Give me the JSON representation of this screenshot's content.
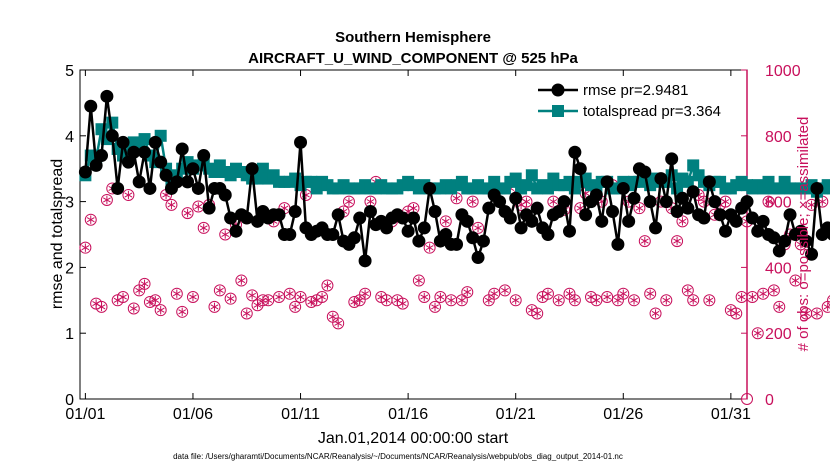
{
  "colors": {
    "rmse": "#000000",
    "spread": "#00807f",
    "obs": "#c8105c",
    "axis": "#000000",
    "grid": "#cccccc"
  },
  "chart_data": {
    "type": "line",
    "title": "Southern Hemisphere",
    "subtitle": "AIRCRAFT_U_WIND_COMPONENT @ 525 hPa",
    "xlabel": "Jan.01,2014 00:00:00 start",
    "ylabel": "rmse and totalspread",
    "y2label": "# of obs: o=possible; ×=assimilated",
    "footer": "data file: /Users/gharamti/Documents/NCAR/Reanalysis/~/Documents/NCAR/Reanalysis/webpub/obs_diag_output_2014-01.nc",
    "xlim": [
      0.75,
      31.75
    ],
    "ylim": [
      0,
      5
    ],
    "y2lim": [
      0,
      1000
    ],
    "xticks": [
      1,
      6,
      11,
      16,
      21,
      26,
      31
    ],
    "xtick_labels": [
      "01/01",
      "01/06",
      "01/11",
      "01/16",
      "01/21",
      "01/26",
      "01/31"
    ],
    "yticks": [
      0,
      1,
      2,
      3,
      4,
      5
    ],
    "ytick_labels": [
      "0",
      "1",
      "2",
      "3",
      "4",
      "5"
    ],
    "y2ticks": [
      0,
      200,
      400,
      600,
      800,
      1000
    ],
    "y2tick_labels": [
      "0",
      "200",
      "400",
      "600",
      "800",
      "1000"
    ],
    "legend_position": "top-right",
    "series": [
      {
        "name": "rmse pr=2.9481",
        "axis": "left",
        "marker": "circle",
        "x_start": 1.0,
        "x_step": 0.25,
        "values": [
          3.45,
          4.45,
          3.55,
          3.7,
          4.6,
          4.0,
          3.2,
          3.9,
          3.6,
          3.75,
          3.3,
          3.75,
          3.2,
          3.9,
          3.6,
          3.4,
          3.2,
          3.3,
          3.8,
          3.3,
          3.5,
          3.2,
          3.7,
          2.9,
          3.2,
          3.2,
          3.1,
          2.75,
          2.55,
          2.8,
          2.75,
          3.5,
          2.7,
          2.85,
          2.75,
          2.8,
          2.8,
          2.5,
          2.5,
          2.85,
          3.9,
          2.6,
          2.5,
          2.55,
          2.6,
          2.5,
          2.5,
          2.8,
          2.4,
          2.35,
          2.45,
          2.75,
          2.1,
          2.85,
          2.65,
          2.7,
          2.6,
          2.75,
          2.8,
          2.75,
          2.55,
          2.75,
          2.4,
          2.6,
          3.2,
          2.85,
          2.4,
          2.5,
          2.35,
          2.35,
          2.8,
          2.7,
          2.45,
          2.15,
          2.4,
          2.9,
          3.1,
          3.0,
          2.85,
          2.75,
          3.05,
          2.6,
          2.8,
          2.7,
          2.9,
          2.6,
          2.5,
          2.8,
          2.85,
          3.0,
          2.55,
          3.75,
          3.5,
          2.8,
          3.0,
          3.1,
          2.7,
          3.3,
          2.85,
          2.35,
          3.2,
          2.7,
          3.05,
          3.5,
          3.45,
          3.0,
          2.6,
          3.35,
          3.0,
          3.65,
          2.85,
          3.05,
          2.9,
          3.15,
          2.8,
          2.75,
          3.3,
          3.0,
          2.8,
          2.55,
          2.8,
          2.7,
          2.9,
          3.0,
          2.75,
          2.55,
          2.7,
          2.5,
          2.45,
          2.25,
          2.4,
          2.8,
          2.5,
          2.55,
          2.4,
          2.2,
          3.2,
          2.5,
          2.6,
          2.5,
          3.2,
          2.55,
          2.6,
          2.45
        ]
      },
      {
        "name": "totalspread pr=3.364",
        "axis": "left",
        "marker": "square",
        "x_start": 1.0,
        "x_step": 0.25,
        "values": [
          3.4,
          3.7,
          3.65,
          4.1,
          3.95,
          4.2,
          3.8,
          3.7,
          3.75,
          3.9,
          3.85,
          3.95,
          3.7,
          3.6,
          4.0,
          3.5,
          3.3,
          3.4,
          3.5,
          3.6,
          3.5,
          3.55,
          3.6,
          3.5,
          3.45,
          3.55,
          3.45,
          3.4,
          3.5,
          3.45,
          3.4,
          3.35,
          3.35,
          3.5,
          3.35,
          3.4,
          3.3,
          3.3,
          3.3,
          3.35,
          3.25,
          3.3,
          3.3,
          3.2,
          3.3,
          3.25,
          3.2,
          3.2,
          3.25,
          3.2,
          3.2,
          3.2,
          3.25,
          3.2,
          3.2,
          3.25,
          3.2,
          3.2,
          3.2,
          3.25,
          3.3,
          3.25,
          3.2,
          3.25,
          3.2,
          3.2,
          3.2,
          3.25,
          3.2,
          3.25,
          3.3,
          3.2,
          3.2,
          3.25,
          3.2,
          3.2,
          3.3,
          3.2,
          3.2,
          3.3,
          3.35,
          3.2,
          3.25,
          3.4,
          3.2,
          3.25,
          3.2,
          3.35,
          3.25,
          3.25,
          3.3,
          3.2,
          3.3,
          3.35,
          3.25,
          3.2,
          3.3,
          3.3,
          3.2,
          3.2,
          3.3,
          3.25,
          3.3,
          3.3,
          3.35,
          3.25,
          3.35,
          3.3,
          3.3,
          3.4,
          3.2,
          3.35,
          3.3,
          3.55,
          3.4,
          3.3,
          3.25,
          3.3,
          3.3,
          3.2,
          3.2,
          3.25,
          3.3,
          3.25,
          3.2,
          3.25,
          3.2,
          3.3,
          3.2,
          3.2,
          3.3,
          3.2,
          3.2,
          3.2,
          3.2,
          3.25,
          3.15,
          3.2,
          3.25,
          3.2,
          3.2,
          3.2
        ]
      },
      {
        "name": "obs possible",
        "axis": "right",
        "marker": "circle-open",
        "x_start": 1.0,
        "x_step": 0.25,
        "values": [
          460,
          545,
          290,
          280,
          605,
          640,
          300,
          310,
          620,
          275,
          330,
          350,
          295,
          300,
          270,
          620,
          590,
          320,
          265,
          565,
          310,
          585,
          520,
          590,
          280,
          330,
          500,
          305,
          530,
          360,
          260,
          315,
          285,
          300,
          300,
          540,
          310,
          580,
          320,
          280,
          310,
          620,
          295,
          300,
          310,
          345,
          250,
          230,
          570,
          600,
          295,
          300,
          320,
          600,
          660,
          310,
          300,
          540,
          300,
          290,
          570,
          580,
          360,
          310,
          460,
          280,
          310,
          540,
          300,
          610,
          300,
          325,
          600,
          520,
          640,
          300,
          320,
          600,
          330,
          640,
          300,
          590,
          600,
          270,
          260,
          310,
          320,
          600,
          300,
          575,
          320,
          300,
          580,
          625,
          310,
          300,
          600,
          310,
          650,
          300,
          320,
          600,
          300,
          580,
          480,
          320,
          260,
          600,
          300,
          580,
          480,
          540,
          330,
          300,
          620,
          600,
          300,
          560,
          590,
          600,
          270,
          260,
          310,
          540,
          310,
          200,
          320,
          600,
          330,
          280,
          470,
          500,
          360,
          470,
          260,
          590,
          260,
          600,
          280,
          300,
          400,
          600,
          230,
          230
        ]
      },
      {
        "name": "obs assimilated",
        "axis": "right",
        "marker": "x",
        "x_start": 1.0,
        "x_step": 0.25,
        "values": [
          460,
          545,
          290,
          280,
          605,
          640,
          300,
          310,
          620,
          275,
          330,
          350,
          295,
          300,
          270,
          620,
          590,
          320,
          265,
          565,
          310,
          585,
          520,
          590,
          280,
          330,
          500,
          305,
          530,
          360,
          260,
          315,
          285,
          300,
          300,
          540,
          310,
          580,
          320,
          280,
          310,
          620,
          295,
          300,
          310,
          345,
          250,
          230,
          570,
          600,
          295,
          300,
          320,
          600,
          660,
          310,
          300,
          540,
          300,
          290,
          570,
          580,
          360,
          310,
          460,
          280,
          310,
          540,
          300,
          610,
          300,
          325,
          600,
          520,
          640,
          300,
          320,
          600,
          330,
          640,
          300,
          590,
          600,
          270,
          260,
          310,
          320,
          600,
          300,
          575,
          320,
          300,
          580,
          625,
          310,
          300,
          600,
          310,
          650,
          300,
          320,
          600,
          300,
          580,
          480,
          320,
          260,
          600,
          300,
          580,
          480,
          540,
          330,
          300,
          620,
          600,
          300,
          560,
          590,
          600,
          270,
          260,
          310,
          540,
          310,
          200,
          320,
          600,
          330,
          280,
          470,
          500,
          360,
          470,
          260,
          590,
          260,
          600,
          280,
          300,
          400,
          600,
          230,
          230
        ]
      }
    ],
    "extra_points": [
      {
        "series": "obs possible",
        "x": 31.75,
        "y2": 0
      }
    ]
  }
}
